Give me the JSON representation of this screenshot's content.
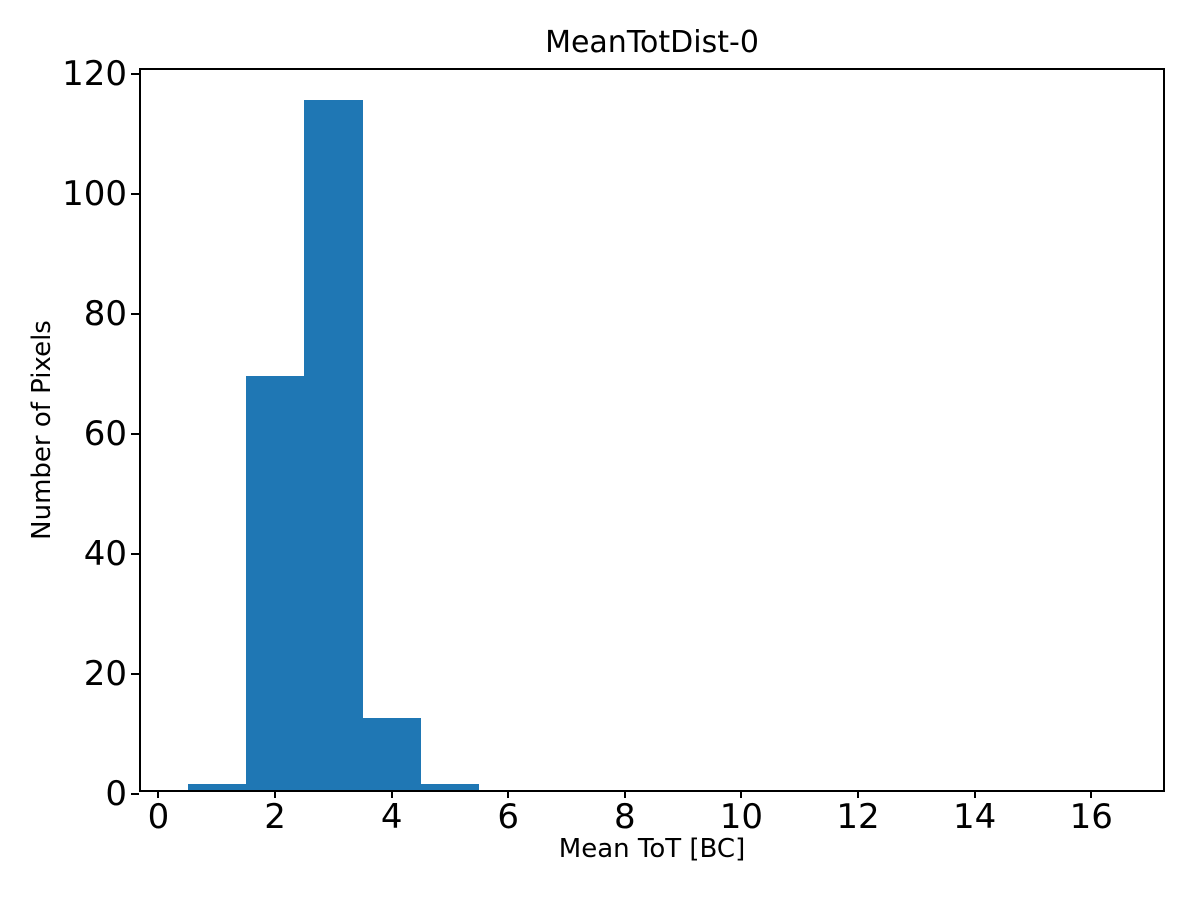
{
  "chart_data": {
    "type": "bar",
    "title": "MeanTotDist-0",
    "xlabel": "Mean ToT [BC]",
    "ylabel": "Number of Pixels",
    "bar_color": "#1f77b4",
    "background_color": "#ffffff",
    "axis_color": "#000000",
    "grid": false,
    "legend_position": "none",
    "xlim": [
      -0.3,
      17.3
    ],
    "ylim": [
      0,
      120.75
    ],
    "xticks": [
      0,
      2,
      4,
      6,
      8,
      10,
      12,
      14,
      16
    ],
    "yticks": [
      0,
      20,
      40,
      60,
      80,
      100,
      120
    ],
    "bins": [
      {
        "start": 0.5,
        "end": 1.5,
        "count": 1
      },
      {
        "start": 1.5,
        "end": 2.5,
        "count": 69
      },
      {
        "start": 2.5,
        "end": 3.5,
        "count": 115
      },
      {
        "start": 3.5,
        "end": 4.5,
        "count": 12
      },
      {
        "start": 4.5,
        "end": 5.5,
        "count": 1
      }
    ]
  }
}
